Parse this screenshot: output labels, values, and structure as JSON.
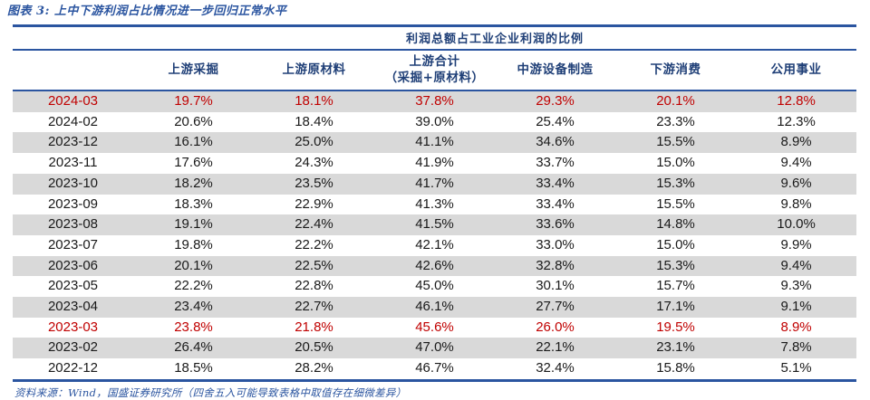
{
  "title": "图表 3: 上中下游利润占比情况进一步回归正常水平",
  "table": {
    "header": "利润总额占工业企业利润的比例",
    "columns": [
      "上游采掘",
      "上游原材料",
      "上游合计\n（采掘+原材料）",
      "中游设备制造",
      "下游消费",
      "公用事业"
    ],
    "rows": [
      {
        "date": "2024-03",
        "values": [
          "19.7%",
          "18.1%",
          "37.8%",
          "29.3%",
          "20.1%",
          "12.8%"
        ],
        "highlight": true
      },
      {
        "date": "2024-02",
        "values": [
          "20.6%",
          "18.4%",
          "39.0%",
          "25.4%",
          "23.3%",
          "12.3%"
        ],
        "highlight": false
      },
      {
        "date": "2023-12",
        "values": [
          "16.1%",
          "25.0%",
          "41.1%",
          "34.6%",
          "15.5%",
          "8.9%"
        ],
        "highlight": false
      },
      {
        "date": "2023-11",
        "values": [
          "17.6%",
          "24.3%",
          "41.9%",
          "33.7%",
          "15.0%",
          "9.4%"
        ],
        "highlight": false
      },
      {
        "date": "2023-10",
        "values": [
          "18.2%",
          "23.5%",
          "41.7%",
          "33.4%",
          "15.3%",
          "9.6%"
        ],
        "highlight": false
      },
      {
        "date": "2023-09",
        "values": [
          "18.3%",
          "22.9%",
          "41.3%",
          "33.4%",
          "15.5%",
          "9.8%"
        ],
        "highlight": false
      },
      {
        "date": "2023-08",
        "values": [
          "19.1%",
          "22.4%",
          "41.5%",
          "33.6%",
          "14.8%",
          "10.0%"
        ],
        "highlight": false
      },
      {
        "date": "2023-07",
        "values": [
          "19.8%",
          "22.2%",
          "42.1%",
          "33.0%",
          "15.0%",
          "9.9%"
        ],
        "highlight": false
      },
      {
        "date": "2023-06",
        "values": [
          "20.1%",
          "22.5%",
          "42.6%",
          "32.8%",
          "15.3%",
          "9.4%"
        ],
        "highlight": false
      },
      {
        "date": "2023-05",
        "values": [
          "22.2%",
          "22.8%",
          "45.0%",
          "30.1%",
          "15.7%",
          "9.3%"
        ],
        "highlight": false
      },
      {
        "date": "2023-04",
        "values": [
          "23.4%",
          "22.7%",
          "46.1%",
          "27.7%",
          "17.1%",
          "9.1%"
        ],
        "highlight": false
      },
      {
        "date": "2023-03",
        "values": [
          "23.8%",
          "21.8%",
          "45.6%",
          "26.0%",
          "19.5%",
          "8.9%"
        ],
        "highlight": true
      },
      {
        "date": "2023-02",
        "values": [
          "26.4%",
          "20.5%",
          "47.0%",
          "22.1%",
          "23.1%",
          "7.8%"
        ],
        "highlight": false
      },
      {
        "date": "2022-12",
        "values": [
          "18.5%",
          "28.2%",
          "46.7%",
          "32.4%",
          "15.8%",
          "5.1%"
        ],
        "highlight": false
      }
    ]
  },
  "footer": "资料来源：Wind，国盛证券研究所（四舍五入可能导致表格中取值存在细微差异）",
  "colors": {
    "accent_blue": "#2b55a0",
    "header_text_blue": "#1f3f77",
    "highlight_red": "#c00000",
    "row_shade_gray": "#d9d9d9",
    "body_text": "#1a1a1a"
  }
}
